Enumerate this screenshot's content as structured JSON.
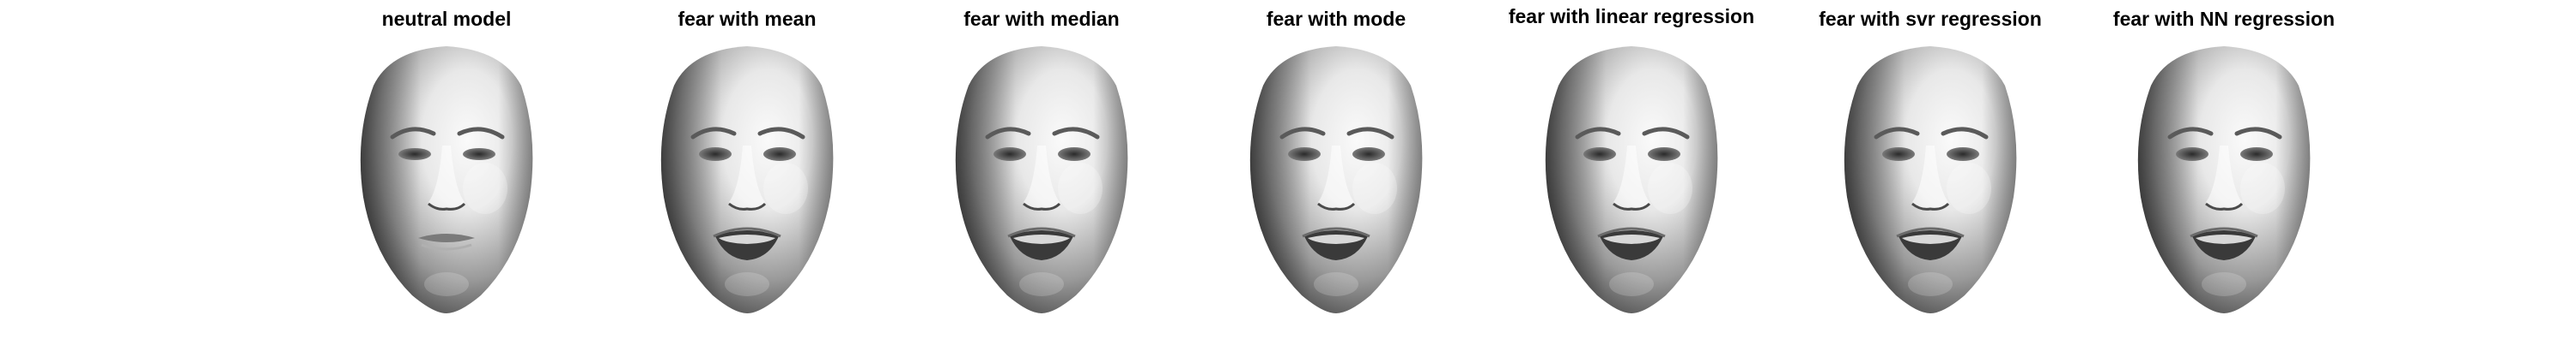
{
  "figure": {
    "panels": [
      {
        "title": "neutral model",
        "expression": "neutral"
      },
      {
        "title": "fear with mean",
        "expression": "fear"
      },
      {
        "title": "fear with median",
        "expression": "fear"
      },
      {
        "title": "fear with mode",
        "expression": "fear"
      },
      {
        "title": "fear with linear regression",
        "expression": "fear"
      },
      {
        "title": "fear with svr regression",
        "expression": "fear"
      },
      {
        "title": "fear with NN regression",
        "expression": "fear"
      }
    ]
  },
  "colors": {
    "background": "#ffffff",
    "title": "#000000",
    "face_light": "#e8e8e8",
    "face_mid": "#9a9a9a",
    "face_dark": "#3a3a3a"
  }
}
